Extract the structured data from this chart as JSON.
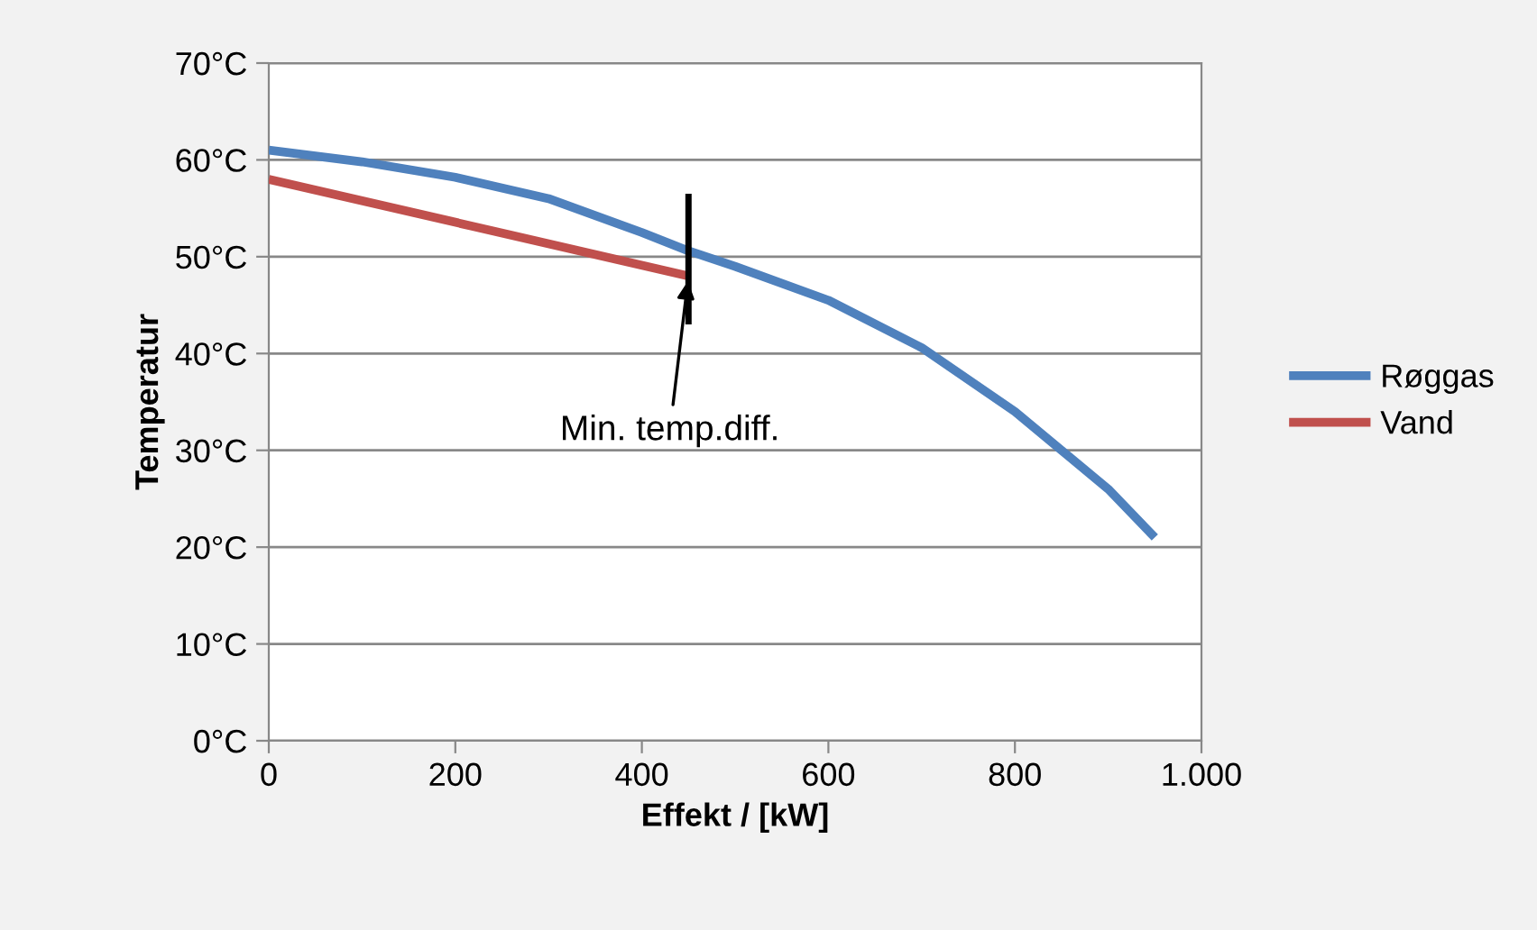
{
  "chart_data": {
    "type": "line",
    "xlabel": "Effekt / [kW]",
    "ylabel": "Temperatur",
    "xlim": [
      0,
      1000
    ],
    "xticks": [
      0,
      200,
      400,
      600,
      800,
      {
        "value": 1000,
        "label": "1.000"
      }
    ],
    "ylim": [
      0,
      70
    ],
    "yticks": [
      {
        "value": 0,
        "label": "0°C"
      },
      {
        "value": 10,
        "label": "10°C"
      },
      {
        "value": 20,
        "label": "20°C"
      },
      {
        "value": 30,
        "label": "30°C"
      },
      {
        "value": 40,
        "label": "40°C"
      },
      {
        "value": 50,
        "label": "50°C"
      },
      {
        "value": 60,
        "label": "60°C"
      },
      {
        "value": 70,
        "label": "70°C"
      }
    ],
    "grid": "y",
    "legend": "right",
    "marker": "none",
    "series": [
      {
        "name": "Røggas",
        "color": "#4f81bd",
        "x": [
          0,
          100,
          200,
          300,
          400,
          450,
          500,
          600,
          700,
          800,
          850,
          900,
          950
        ],
        "values": [
          61,
          59.8,
          58.2,
          56,
          52.5,
          50.6,
          49,
          45.5,
          40.6,
          34,
          30,
          26,
          21
        ]
      },
      {
        "name": "Vand",
        "color": "#c0504d",
        "x": [
          0,
          450
        ],
        "values": [
          58,
          48
        ]
      },
      {
        "color": "#000000",
        "x": [
          450,
          450
        ],
        "values": [
          43,
          56.5
        ]
      }
    ],
    "annotations": [
      {
        "text": "Min. temp.diff.",
        "x": 450,
        "y": 48
      }
    ]
  }
}
